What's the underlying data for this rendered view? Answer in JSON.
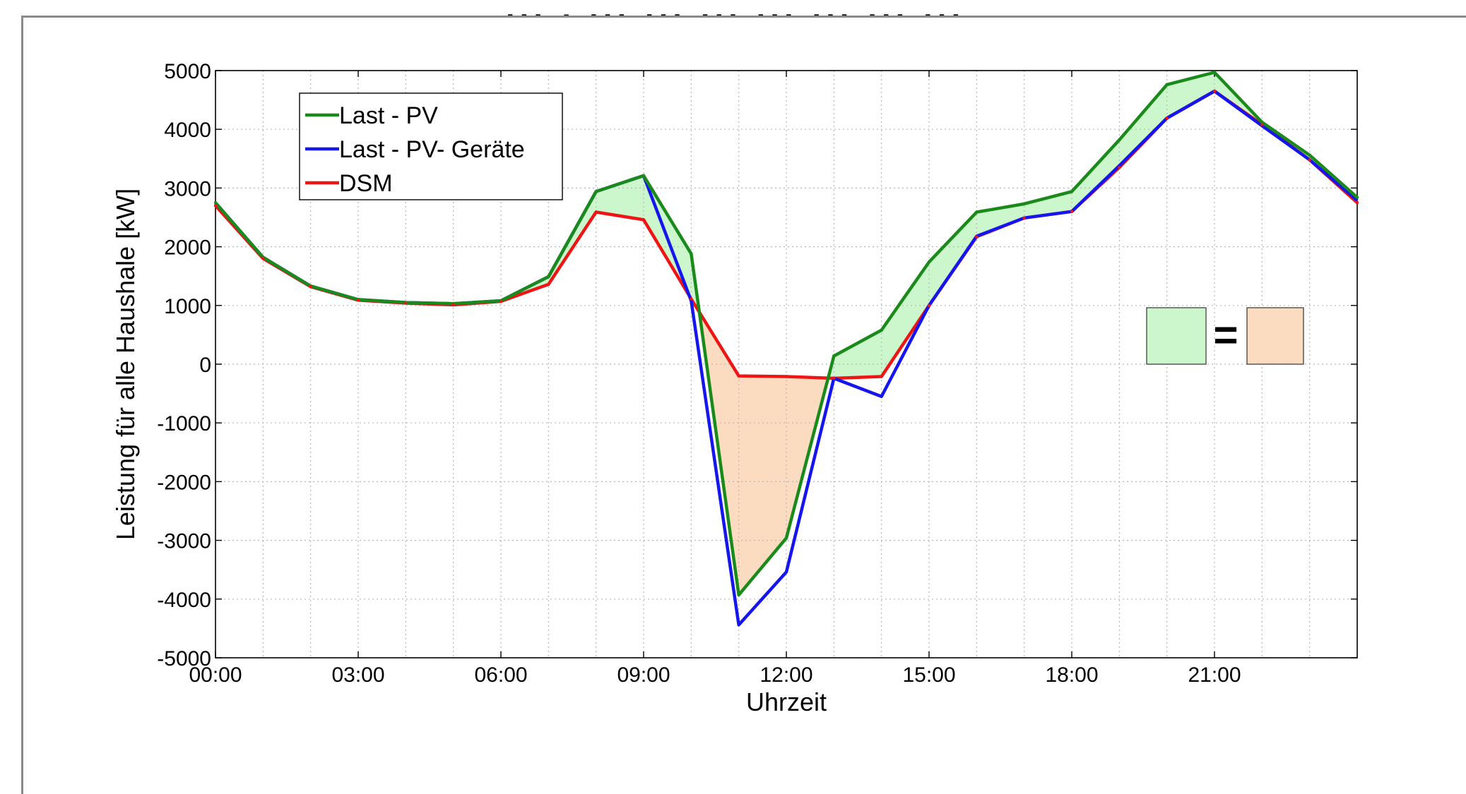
{
  "page": {
    "title_partial": "... , ... ... ... ... ... ... ...",
    "title_fragments": [
      "",
      "g",
      "g"
    ]
  },
  "chart_data": {
    "type": "line",
    "title": "",
    "xlabel": "Uhrzeit",
    "ylabel": "Leistung für alle Haushale [kW]",
    "xlim": [
      0,
      24
    ],
    "ylim": [
      -5000,
      5000
    ],
    "grid": true,
    "x_ticks": [
      0,
      3,
      6,
      9,
      12,
      15,
      18,
      21
    ],
    "x_tick_labels": [
      "00:00",
      "03:00",
      "06:00",
      "09:00",
      "12:00",
      "15:00",
      "18:00",
      "21:00"
    ],
    "y_ticks": [
      -5000,
      -4000,
      -3000,
      -2000,
      -1000,
      0,
      1000,
      2000,
      3000,
      4000,
      5000
    ],
    "y_tick_labels": [
      "-5000",
      "-4000",
      "-3000",
      "-2000",
      "-1000",
      "0",
      "1000",
      "2000",
      "3000",
      "4000",
      "5000"
    ],
    "x": [
      0,
      1,
      2,
      3,
      4,
      5,
      6,
      7,
      8,
      9,
      10,
      11,
      12,
      13,
      14,
      15,
      16,
      17,
      18,
      19,
      20,
      21,
      22,
      23,
      24
    ],
    "series": [
      {
        "name": "Last - PV",
        "color": "#1a8a1a",
        "values": [
          2750,
          1820,
          1330,
          1100,
          1050,
          1030,
          1080,
          1490,
          2940,
          3210,
          1880,
          -3930,
          -2960,
          140,
          580,
          1740,
          2590,
          2730,
          2940,
          3820,
          4760,
          4970,
          4120,
          3560,
          2840
        ]
      },
      {
        "name": "Last - PV- Geräte",
        "color": "#1515ee",
        "values": [
          2750,
          1820,
          1330,
          1100,
          1050,
          1030,
          1080,
          1490,
          2940,
          3210,
          1080,
          -4440,
          -3540,
          -240,
          -550,
          1000,
          2180,
          2490,
          2600,
          3380,
          4190,
          4650,
          4060,
          3480,
          2790
        ]
      },
      {
        "name": "DSM",
        "color": "#ee1515",
        "values": [
          2700,
          1800,
          1320,
          1090,
          1040,
          1010,
          1070,
          1360,
          2590,
          2460,
          1110,
          -200,
          -210,
          -240,
          -210,
          1000,
          2170,
          2490,
          2600,
          3350,
          4190,
          4650,
          4080,
          3480,
          2750
        ]
      }
    ],
    "legend": {
      "placement": "top-left",
      "entries": [
        "Last - PV",
        "Last - PV- Geräte",
        "DSM"
      ]
    },
    "shading": [
      {
        "between": [
          "Last - PV",
          "DSM"
        ],
        "where": "Last - PV above DSM",
        "color": "#ccf6cc"
      },
      {
        "between": [
          "DSM",
          "Last - PV"
        ],
        "where": "DSM above Last - PV",
        "color": "#fbdcc0"
      }
    ],
    "annotation": {
      "symbol": "=",
      "left_box_color": "#ccf6cc",
      "right_box_color": "#fbdcc0"
    }
  }
}
